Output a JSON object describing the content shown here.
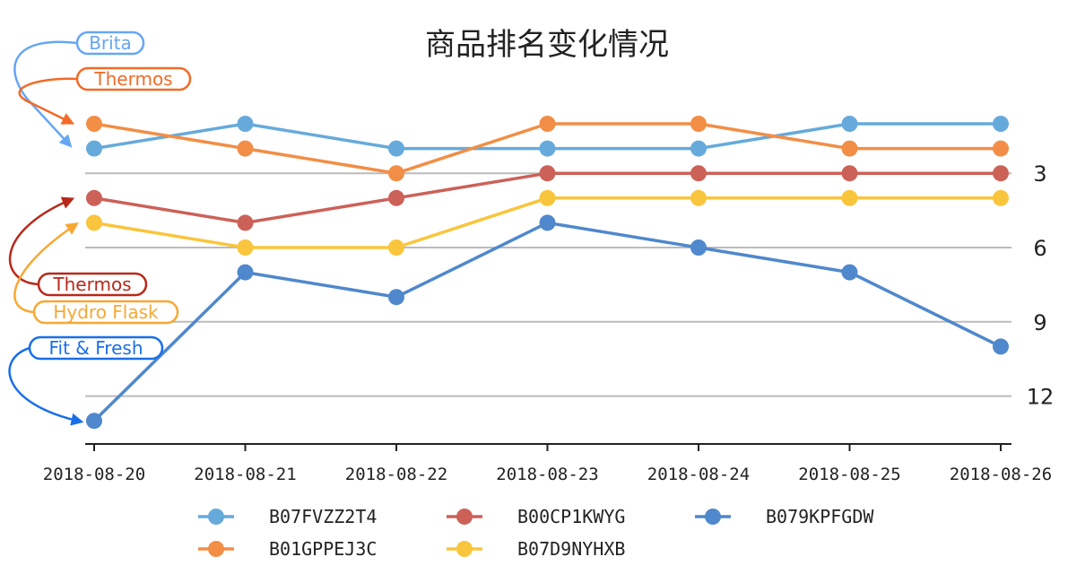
{
  "chart_data": {
    "type": "line",
    "title": "商品排名变化情况",
    "categories": [
      "2018-08-20",
      "2018-08-21",
      "2018-08-22",
      "2018-08-23",
      "2018-08-24",
      "2018-08-25",
      "2018-08-26"
    ],
    "y_axis": {
      "ticks": [
        3,
        6,
        9,
        12
      ],
      "inverted": true,
      "position": "right",
      "range": [
        0,
        14
      ]
    },
    "grid": "horizontal",
    "legend_position": "bottom",
    "series": [
      {
        "name": "B07FVZZ2T4",
        "color": "#66aadb",
        "values": [
          2,
          1,
          2,
          2,
          2,
          1,
          1
        ]
      },
      {
        "name": "B01GPPEJ3C",
        "color": "#f28e46",
        "values": [
          1,
          2,
          3,
          1,
          1,
          2,
          2
        ]
      },
      {
        "name": "B00CP1KWYG",
        "color": "#cc6158",
        "values": [
          4,
          5,
          4,
          3,
          3,
          3,
          3
        ]
      },
      {
        "name": "B07D9NYHXB",
        "color": "#f9c53c",
        "values": [
          5,
          6,
          6,
          4,
          4,
          4,
          4
        ]
      },
      {
        "name": "B079KPFGDW",
        "color": "#4f88cc",
        "values": [
          13,
          7,
          8,
          5,
          6,
          7,
          10
        ]
      }
    ],
    "annotations": [
      {
        "text": "Brita",
        "series": "B07FVZZ2T4",
        "color": "#66a6f2"
      },
      {
        "text": "Thermos",
        "series": "B01GPPEJ3C",
        "color": "#f26a26"
      },
      {
        "text": "Thermos",
        "series": "B00CP1KWYG",
        "color": "#b8281a"
      },
      {
        "text": "Hydro Flask",
        "series": "B07D9NYHXB",
        "color": "#f7a832"
      },
      {
        "text": "Fit & Fresh",
        "series": "B079KPFGDW",
        "color": "#1a6fe8"
      }
    ]
  }
}
